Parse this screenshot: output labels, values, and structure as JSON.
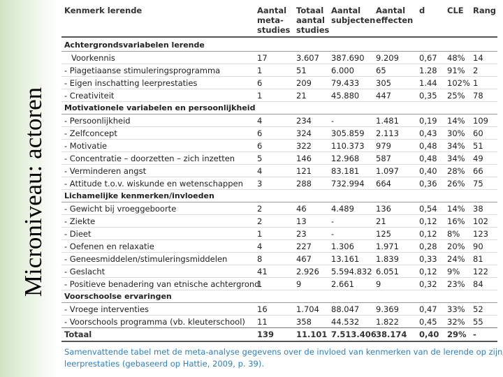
{
  "side_title": "Microniveau: actoren",
  "table": {
    "header": [
      [
        "Kenmerk lerende"
      ],
      [
        "Aantal",
        "meta-",
        "studies"
      ],
      [
        "Totaal",
        "aantal",
        "studies"
      ],
      [
        "Aantal",
        "subjecten"
      ],
      [
        "Aantal",
        "effecten"
      ],
      [
        "d"
      ],
      [
        "CLE"
      ],
      [
        "Rang"
      ]
    ],
    "sections": [
      {
        "title": "Achtergrondsvariabelen lerende",
        "rows": [
          {
            "label": "Voorkennis",
            "cells": [
              "17",
              "3.607",
              "387.690",
              "9.209",
              "0,67",
              "48%",
              "14"
            ]
          },
          {
            "label": "- Piagetiaanse stimuleringsprogramma",
            "cells": [
              "1",
              "51",
              "6.000",
              "65",
              "1.28",
              "91%",
              "2"
            ]
          },
          {
            "label": "- Eigen inschatting leerprestaties",
            "cells": [
              "6",
              "209",
              "79.433",
              "305",
              "1.44",
              "102%",
              "1"
            ]
          },
          {
            "label": "- Creativiteit",
            "cells": [
              "1",
              "21",
              "45.880",
              "447",
              "0,35",
              "25%",
              "78"
            ]
          }
        ]
      },
      {
        "title": "Motivationele variabelen en persoonlijkheid",
        "rows": [
          {
            "label": "- Persoonlijkheid",
            "cells": [
              "4",
              "234",
              "-",
              "1.481",
              "0,19",
              "14%",
              "109"
            ]
          },
          {
            "label": "- Zelfconcept",
            "cells": [
              "6",
              "324",
              "305.859",
              "2.113",
              "0,43",
              "30%",
              "60"
            ]
          },
          {
            "label": "- Motivatie",
            "cells": [
              "6",
              "322",
              "110.373",
              "979",
              "0,48",
              "34%",
              "51"
            ]
          },
          {
            "label": "- Concentratie – doorzetten – zich inzetten",
            "cells": [
              "5",
              "146",
              "12.968",
              "587",
              "0,48",
              "34%",
              "49"
            ]
          },
          {
            "label": "- Verminderen angst",
            "cells": [
              "4",
              "121",
              "83.181",
              "1.097",
              "0,40",
              "28%",
              "66"
            ]
          },
          {
            "label": "- Attitude t.o.v. wiskunde en wetenschappen",
            "cells": [
              "3",
              "288",
              "732.994",
              "664",
              "0,36",
              "26%",
              "75"
            ]
          }
        ]
      },
      {
        "title": "Lichamelijke kenmerken/invloeden",
        "rows": [
          {
            "label": "- Gewicht bij vroeggeboorte",
            "cells": [
              "2",
              "46",
              "4.489",
              "136",
              "0,54",
              "14%",
              "38"
            ]
          },
          {
            "label": "- Ziekte",
            "cells": [
              "2",
              "13",
              "-",
              "21",
              "0,12",
              "16%",
              "102"
            ]
          },
          {
            "label": "- Dieet",
            "cells": [
              "1",
              "23",
              "-",
              "125",
              "0,12",
              "8%",
              "123"
            ]
          },
          {
            "label": "- Oefenen en relaxatie",
            "cells": [
              "4",
              "227",
              "1.306",
              "1.971",
              "0,28",
              "20%",
              "90"
            ]
          },
          {
            "label": "- Geneesmiddelen/stimuleringsmiddelen",
            "cells": [
              "8",
              "467",
              "13.161",
              "1.839",
              "0,33",
              "24%",
              "81"
            ]
          },
          {
            "label": "- Geslacht",
            "cells": [
              "41",
              "2.926",
              "5.594.832",
              "6.051",
              "0,12",
              "9%",
              "122"
            ]
          },
          {
            "label": "- Positieve benadering van etnische achtergrond",
            "cells": [
              "1",
              "9",
              "2.661",
              "9",
              "0,32",
              "23%",
              "84"
            ]
          }
        ]
      },
      {
        "title": "Voorschoolse ervaringen",
        "rows": [
          {
            "label": "- Vroege interventies",
            "cells": [
              "16",
              "1.704",
              "88.047",
              "9.369",
              "0,47",
              "33%",
              "52"
            ]
          },
          {
            "label": "- Voorschools programma (vb. kleuterschool)",
            "cells": [
              "11",
              "358",
              "44.532",
              "1.822",
              "0,45",
              "32%",
              "55"
            ]
          }
        ]
      }
    ],
    "total": {
      "label": "Totaal",
      "cells": [
        "139",
        "11.101",
        "7.513.406",
        "38.174",
        "0,40",
        "29%",
        "-"
      ]
    }
  },
  "caption": [
    "Samenvattende tabel met de meta-analyse gegevens over de invloed van kenmerken van de lerende op zijn/haar",
    "leerprestaties (gebaseerd op Hattie, 2009, p. 39)."
  ]
}
